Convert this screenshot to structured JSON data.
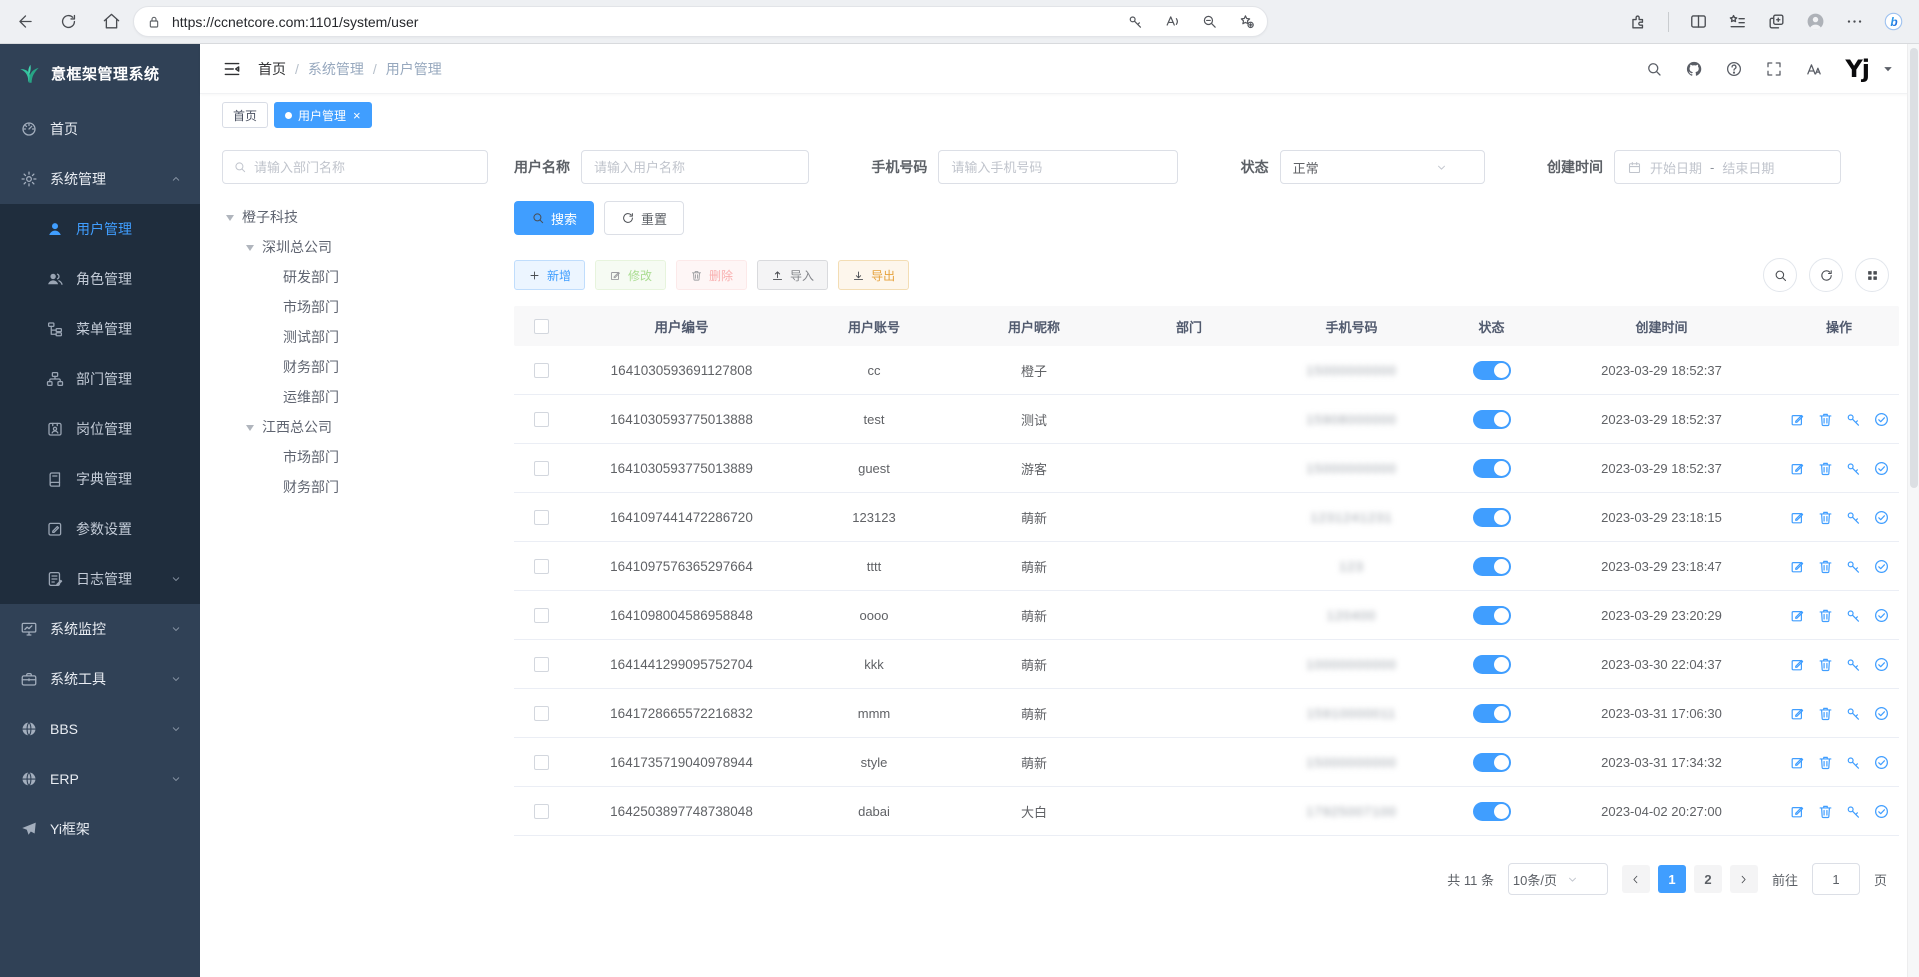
{
  "browser": {
    "url": "https://ccnetcore.com:1101/system/user"
  },
  "sidebar": {
    "logo_title": "意框架管理系统",
    "items": [
      {
        "key": "home",
        "label": "首页",
        "icon": "dashboard-icon"
      },
      {
        "key": "system",
        "label": "系统管理",
        "icon": "gear-icon",
        "arrow": "up",
        "children": [
          {
            "key": "user",
            "label": "用户管理",
            "icon": "user-icon",
            "active": true
          },
          {
            "key": "role",
            "label": "角色管理",
            "icon": "role-icon"
          },
          {
            "key": "menu",
            "label": "菜单管理",
            "icon": "menu-tree-icon"
          },
          {
            "key": "dept",
            "label": "部门管理",
            "icon": "org-icon"
          },
          {
            "key": "post",
            "label": "岗位管理",
            "icon": "badge-icon"
          },
          {
            "key": "dict",
            "label": "字典管理",
            "icon": "book-icon"
          },
          {
            "key": "param",
            "label": "参数设置",
            "icon": "edit-square-icon"
          },
          {
            "key": "log",
            "label": "日志管理",
            "icon": "log-icon",
            "arrow": "down"
          }
        ]
      },
      {
        "key": "monitor",
        "label": "系统监控",
        "icon": "monitor-icon",
        "arrow": "down"
      },
      {
        "key": "tools",
        "label": "系统工具",
        "icon": "toolbox-icon",
        "arrow": "down"
      },
      {
        "key": "bbs",
        "label": "BBS",
        "icon": "globe-icon",
        "arrow": "down"
      },
      {
        "key": "erp",
        "label": "ERP",
        "icon": "globe-icon",
        "arrow": "down"
      },
      {
        "key": "yi",
        "label": "Yi框架",
        "icon": "plane-icon"
      }
    ]
  },
  "navbar": {
    "breadcrumb": [
      "首页",
      "系统管理",
      "用户管理"
    ],
    "separator": "/",
    "user_initials": "Yj"
  },
  "tabs": [
    {
      "label": "首页"
    },
    {
      "label": "用户管理",
      "active": true
    }
  ],
  "tree": {
    "search_placeholder": "请输入部门名称",
    "nodes": [
      {
        "label": "橙子科技",
        "depth": 0,
        "caret": true
      },
      {
        "label": "深圳总公司",
        "depth": 1,
        "caret": true
      },
      {
        "label": "研发部门",
        "depth": 2
      },
      {
        "label": "市场部门",
        "depth": 2
      },
      {
        "label": "测试部门",
        "depth": 2
      },
      {
        "label": "财务部门",
        "depth": 2
      },
      {
        "label": "运维部门",
        "depth": 2
      },
      {
        "label": "江西总公司",
        "depth": 1,
        "caret": true
      },
      {
        "label": "市场部门",
        "depth": 2
      },
      {
        "label": "财务部门",
        "depth": 2
      }
    ]
  },
  "filters": {
    "username_label": "用户名称",
    "username_placeholder": "请输入用户名称",
    "phone_label": "手机号码",
    "phone_placeholder": "请输入手机号码",
    "status_label": "状态",
    "status_value": "正常",
    "created_label": "创建时间",
    "date_start_placeholder": "开始日期",
    "date_separator": "-",
    "date_end_placeholder": "结束日期",
    "search_label": "搜索",
    "reset_label": "重置"
  },
  "toolbar": {
    "buttons": [
      {
        "key": "add",
        "label": "新增",
        "icon": "plus-icon",
        "type": "primary"
      },
      {
        "key": "edit",
        "label": "修改",
        "icon": "edit-icon",
        "type": "success"
      },
      {
        "key": "delete",
        "label": "删除",
        "icon": "trash-icon",
        "type": "danger"
      },
      {
        "key": "import",
        "label": "导入",
        "icon": "upload-icon",
        "type": "info"
      },
      {
        "key": "export",
        "label": "导出",
        "icon": "download-icon",
        "type": "warning"
      }
    ]
  },
  "table": {
    "headers": [
      "用户编号",
      "用户账号",
      "用户昵称",
      "部门",
      "手机号码",
      "状态",
      "创建时间",
      "操作"
    ],
    "action_buttons": [
      {
        "name": "edit-button",
        "icon": "edit-icon"
      },
      {
        "name": "delete-button",
        "icon": "trash-icon"
      },
      {
        "name": "reset-password-button",
        "icon": "key-icon"
      },
      {
        "name": "assign-role-button",
        "icon": "check-circle-icon"
      }
    ],
    "rows": [
      {
        "id": "1641030593691127808",
        "account": "cc",
        "nickname": "橙子",
        "dept": "",
        "phone": "15000000000",
        "phone_censored": true,
        "status": true,
        "created": "2023-03-29 18:52:37",
        "actions": false
      },
      {
        "id": "1641030593775013888",
        "account": "test",
        "nickname": "测试",
        "dept": "",
        "phone": "15908000000",
        "phone_censored": true,
        "status": true,
        "created": "2023-03-29 18:52:37",
        "actions": true
      },
      {
        "id": "1641030593775013889",
        "account": "guest",
        "nickname": "游客",
        "dept": "",
        "phone": "15000000000",
        "phone_censored": true,
        "status": true,
        "created": "2023-03-29 18:52:37",
        "actions": true
      },
      {
        "id": "1641097441472286720",
        "account": "123123",
        "nickname": "萌新",
        "dept": "",
        "phone": "1231241231",
        "phone_censored": true,
        "status": true,
        "created": "2023-03-29 23:18:15",
        "actions": true
      },
      {
        "id": "1641097576365297664",
        "account": "tttt",
        "nickname": "萌新",
        "dept": "",
        "phone": "123",
        "phone_censored": true,
        "status": true,
        "created": "2023-03-29 23:18:47",
        "actions": true
      },
      {
        "id": "1641098004586958848",
        "account": "oooo",
        "nickname": "萌新",
        "dept": "",
        "phone": "120400",
        "phone_censored": true,
        "status": true,
        "created": "2023-03-29 23:20:29",
        "actions": true
      },
      {
        "id": "1641441299095752704",
        "account": "kkk",
        "nickname": "萌新",
        "dept": "",
        "phone": "10000000000",
        "phone_censored": true,
        "status": true,
        "created": "2023-03-30 22:04:37",
        "actions": true
      },
      {
        "id": "1641728665572216832",
        "account": "mmm",
        "nickname": "萌新",
        "dept": "",
        "phone": "15910000011",
        "phone_censored": true,
        "status": true,
        "created": "2023-03-31 17:06:30",
        "actions": true
      },
      {
        "id": "1641735719040978944",
        "account": "style",
        "nickname": "萌新",
        "dept": "",
        "phone": "15000000000",
        "phone_censored": true,
        "status": true,
        "created": "2023-03-31 17:34:32",
        "actions": true
      },
      {
        "id": "1642503897748738048",
        "account": "dabai",
        "nickname": "大白",
        "dept": "",
        "phone": "17925007100",
        "phone_censored": true,
        "status": true,
        "created": "2023-04-02 20:27:00",
        "actions": true
      }
    ]
  },
  "pagination": {
    "total": "共 11 条",
    "page_size": "10条/页",
    "pages": [
      "1",
      "2"
    ],
    "current": "1",
    "goto_label": "前往",
    "goto_value": "1",
    "unit_label": "页"
  },
  "colors": {
    "accent": "#409eff",
    "sidebar_bg": "#304156",
    "submenu_bg": "#1f2d3d",
    "toggle_on": "#409eff"
  }
}
